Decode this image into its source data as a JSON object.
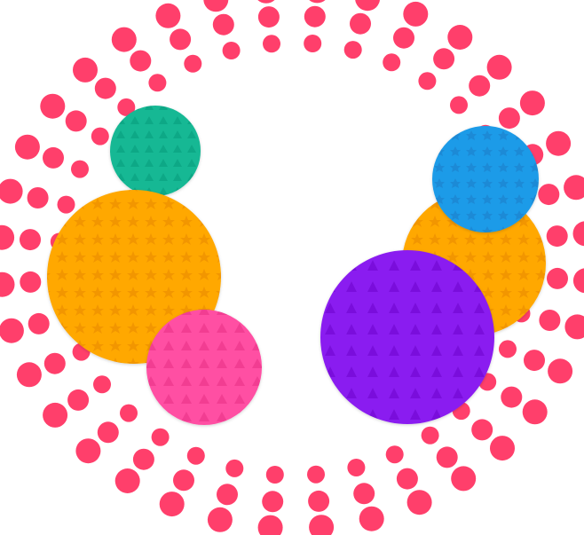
{
  "scene": {
    "background": "#ffffff",
    "burst_dot_color": "#ff3f6b"
  },
  "balls": [
    {
      "name": "green-ball",
      "color": "#14b894",
      "pattern": "triangle",
      "pattern_color": "#0ea886"
    },
    {
      "name": "orange-ball-left",
      "color": "#ffa800",
      "pattern": "star",
      "pattern_color": "#f29600"
    },
    {
      "name": "pink-ball",
      "color": "#ff4fa3",
      "pattern": "triangle",
      "pattern_color": "#f23d92"
    },
    {
      "name": "orange-ball-right",
      "color": "#ffa800",
      "pattern": "star",
      "pattern_color": "#f29600"
    },
    {
      "name": "blue-ball",
      "color": "#1f9be8",
      "pattern": "star",
      "pattern_color": "#1a8ad6"
    },
    {
      "name": "purple-ball",
      "color": "#8a1ef0",
      "pattern": "triangle",
      "pattern_color": "#7a10dc"
    }
  ]
}
